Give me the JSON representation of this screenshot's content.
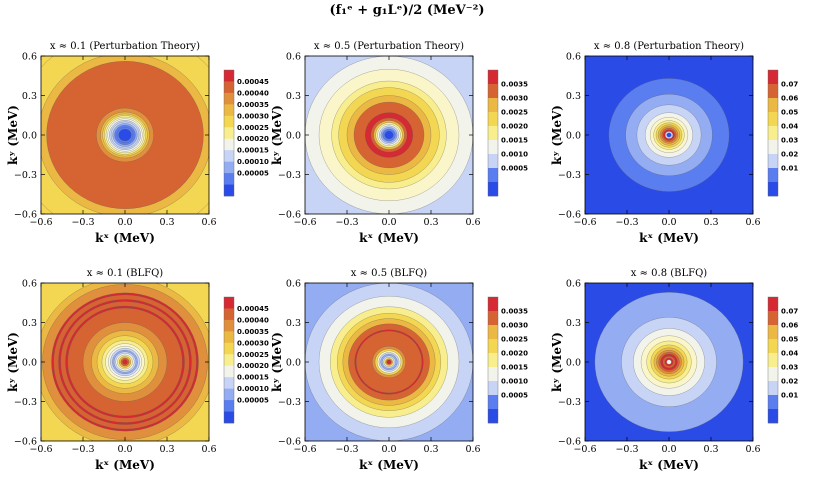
{
  "figure": {
    "title": "(f₁ᵉ + g₁Lᵉ)/2 (MeV⁻²)"
  },
  "colors": {
    "palette": [
      "#2a4be6",
      "#5a7df0",
      "#93acf2",
      "#c7d4f5",
      "#f2f4ec",
      "#fbf6c9",
      "#f8ee8e",
      "#f3d651",
      "#ebb843",
      "#e08f3c",
      "#d66433",
      "#d52a33"
    ]
  },
  "chart_data": [
    {
      "type": "contour",
      "title": "x ≈ 0.1 (Perturbation Theory)",
      "xlabel": "kˣ (MeV)",
      "ylabel": "kʸ (MeV)",
      "xlim": [
        -0.6,
        0.6
      ],
      "ylim": [
        -0.6,
        0.6
      ],
      "xticks": [
        "−0.6",
        "−0.3",
        "0.0",
        "0.3",
        "0.6"
      ],
      "yticks": [
        "0.6",
        "0.3",
        "0.0",
        "−0.3",
        "−0.6"
      ],
      "colorbar": {
        "ticks": [
          "0.00045",
          "0.00040",
          "0.00035",
          "0.00030",
          "0.00025",
          "0.00020",
          "0.00015",
          "0.00010",
          "0.00005"
        ],
        "levels": 11
      },
      "rings": [
        {
          "r": 0.79,
          "level": 7
        },
        {
          "r": 0.62,
          "level": 8
        },
        {
          "r": 0.56,
          "level": 10
        },
        {
          "r": 0.205,
          "level": 9
        },
        {
          "r": 0.175,
          "level": 8
        },
        {
          "r": 0.16,
          "level": 7
        },
        {
          "r": 0.148,
          "level": 6
        },
        {
          "r": 0.136,
          "level": 5
        },
        {
          "r": 0.124,
          "level": 4
        },
        {
          "r": 0.112,
          "level": 3
        },
        {
          "r": 0.1,
          "level": 3
        },
        {
          "r": 0.088,
          "level": 2
        },
        {
          "r": 0.074,
          "level": 1
        },
        {
          "r": 0.058,
          "level": 1
        },
        {
          "r": 0.045,
          "level": 0
        }
      ]
    },
    {
      "type": "contour",
      "title": "x ≈ 0.5 (Perturbation Theory)",
      "xlabel": "kˣ (MeV)",
      "ylabel": "kʸ (MeV)",
      "xlim": [
        -0.6,
        0.6
      ],
      "ylim": [
        -0.6,
        0.6
      ],
      "xticks": [
        "−0.6",
        "−0.3",
        "0.0",
        "0.3",
        "0.6"
      ],
      "yticks": [
        "0.6",
        "0.3",
        "0.0",
        "−0.3",
        "−0.6"
      ],
      "colorbar": {
        "ticks": [
          "0.0035",
          "0.0030",
          "0.0025",
          "0.0020",
          "0.0015",
          "0.0010",
          "0.0005"
        ],
        "levels": 9
      },
      "rings": [
        {
          "r": 0.9,
          "level": 3
        },
        {
          "r": 0.6,
          "level": 4
        },
        {
          "r": 0.5,
          "level": 5
        },
        {
          "r": 0.41,
          "level": 6
        },
        {
          "r": 0.36,
          "level": 7
        },
        {
          "r": 0.3,
          "level": 8
        },
        {
          "r": 0.25,
          "level": 10
        },
        {
          "r": 0.17,
          "level": 11
        },
        {
          "r": 0.13,
          "level": 10
        },
        {
          "r": 0.11,
          "level": 8
        },
        {
          "r": 0.095,
          "level": 6
        },
        {
          "r": 0.082,
          "level": 4
        },
        {
          "r": 0.07,
          "level": 3
        },
        {
          "r": 0.058,
          "level": 2
        },
        {
          "r": 0.046,
          "level": 1
        },
        {
          "r": 0.03,
          "level": 0
        }
      ]
    },
    {
      "type": "contour",
      "title": "x ≈ 0.8 (Perturbation Theory)",
      "xlabel": "kˣ (MeV)",
      "ylabel": "kʸ (MeV)",
      "xlim": [
        -0.6,
        0.6
      ],
      "ylim": [
        -0.6,
        0.6
      ],
      "xticks": [
        "−0.6",
        "−0.3",
        "0.0",
        "0.3",
        "0.6"
      ],
      "yticks": [
        "0.6",
        "0.3",
        "0.0",
        "−0.3",
        "−0.6"
      ],
      "colorbar": {
        "ticks": [
          "0.07",
          "0.06",
          "0.05",
          "0.04",
          "0.03",
          "0.02",
          "0.01"
        ],
        "levels": 9
      },
      "background_level": 0,
      "rings": [
        {
          "r": 0.43,
          "level": 1
        },
        {
          "r": 0.31,
          "level": 2
        },
        {
          "r": 0.23,
          "level": 3
        },
        {
          "r": 0.17,
          "level": 4
        },
        {
          "r": 0.135,
          "level": 5
        },
        {
          "r": 0.11,
          "level": 6
        },
        {
          "r": 0.093,
          "level": 7
        },
        {
          "r": 0.078,
          "level": 8
        },
        {
          "r": 0.064,
          "level": 9
        },
        {
          "r": 0.052,
          "level": 10
        },
        {
          "r": 0.04,
          "level": 11
        },
        {
          "r": 0.028,
          "level": 3
        },
        {
          "r": 0.016,
          "level": 0
        }
      ]
    },
    {
      "type": "contour",
      "title": "x ≈ 0.1 (BLFQ)",
      "xlabel": "kˣ (MeV)",
      "ylabel": "kʸ (MeV)",
      "xlim": [
        -0.6,
        0.6
      ],
      "ylim": [
        -0.6,
        0.6
      ],
      "xticks": [
        "−0.6",
        "−0.3",
        "0.0",
        "0.3",
        "0.6"
      ],
      "yticks": [
        "0.6",
        "0.3",
        "0.0",
        "−0.3",
        "−0.6"
      ],
      "colorbar": {
        "ticks": [
          "0.00045",
          "0.00040",
          "0.00035",
          "0.00030",
          "0.00025",
          "0.00020",
          "0.00015",
          "0.00010",
          "0.00005"
        ],
        "levels": 11
      },
      "rings": [
        {
          "r": 0.85,
          "level": 7
        },
        {
          "r": 0.64,
          "level": 8
        },
        {
          "r": 0.59,
          "level": 9
        },
        {
          "r": 0.525,
          "level": 11
        },
        {
          "r": 0.51,
          "level": 10
        },
        {
          "r": 0.475,
          "level": 11
        },
        {
          "r": 0.46,
          "level": 10
        },
        {
          "r": 0.425,
          "level": 11
        },
        {
          "r": 0.41,
          "level": 10
        },
        {
          "r": 0.3,
          "level": 9
        },
        {
          "r": 0.24,
          "level": 8
        },
        {
          "r": 0.2,
          "level": 7
        },
        {
          "r": 0.165,
          "level": 6
        },
        {
          "r": 0.14,
          "level": 5
        },
        {
          "r": 0.12,
          "level": 4
        },
        {
          "r": 0.105,
          "level": 3
        },
        {
          "r": 0.09,
          "level": 2
        },
        {
          "r": 0.078,
          "level": 3
        },
        {
          "r": 0.066,
          "level": 4
        },
        {
          "r": 0.054,
          "level": 6
        },
        {
          "r": 0.042,
          "level": 8
        },
        {
          "r": 0.03,
          "level": 10
        },
        {
          "r": 0.018,
          "level": 11
        }
      ]
    },
    {
      "type": "contour",
      "title": "x ≈ 0.5 (BLFQ)",
      "xlabel": "kˣ (MeV)",
      "ylabel": "kʸ (MeV)",
      "xlim": [
        -0.6,
        0.6
      ],
      "ylim": [
        -0.6,
        0.6
      ],
      "xticks": [
        "−0.6",
        "−0.3",
        "0.0",
        "0.3",
        "0.6"
      ],
      "yticks": [
        "0.6",
        "0.3",
        "0.0",
        "−0.3",
        "−0.6"
      ],
      "colorbar": {
        "ticks": [
          "0.0035",
          "0.0030",
          "0.0025",
          "0.0020",
          "0.0015",
          "0.0010",
          "0.0005"
        ],
        "levels": 9
      },
      "rings": [
        {
          "r": 0.9,
          "level": 2
        },
        {
          "r": 0.6,
          "level": 3
        },
        {
          "r": 0.5,
          "level": 4
        },
        {
          "r": 0.42,
          "level": 6
        },
        {
          "r": 0.37,
          "level": 7
        },
        {
          "r": 0.33,
          "level": 8
        },
        {
          "r": 0.29,
          "level": 10
        },
        {
          "r": 0.245,
          "level": 11
        },
        {
          "r": 0.235,
          "level": 10
        },
        {
          "r": 0.12,
          "level": 9
        },
        {
          "r": 0.1,
          "level": 7
        },
        {
          "r": 0.085,
          "level": 5
        },
        {
          "r": 0.072,
          "level": 3
        },
        {
          "r": 0.06,
          "level": 2
        },
        {
          "r": 0.048,
          "level": 3
        },
        {
          "r": 0.037,
          "level": 6
        },
        {
          "r": 0.026,
          "level": 9
        },
        {
          "r": 0.016,
          "level": 11
        }
      ]
    },
    {
      "type": "contour",
      "title": "x ≈ 0.8 (BLFQ)",
      "xlabel": "kˣ (MeV)",
      "ylabel": "kʸ (MeV)",
      "xlim": [
        -0.6,
        0.6
      ],
      "ylim": [
        -0.6,
        0.6
      ],
      "xticks": [
        "−0.6",
        "−0.3",
        "0.0",
        "0.3",
        "0.6"
      ],
      "yticks": [
        "0.6",
        "0.3",
        "0.0",
        "−0.3",
        "−0.6"
      ],
      "colorbar": {
        "ticks": [
          "0.07",
          "0.06",
          "0.05",
          "0.04",
          "0.03",
          "0.02",
          "0.01"
        ],
        "levels": 9
      },
      "background_level": 0,
      "rings": [
        {
          "r": 0.53,
          "level": 2
        },
        {
          "r": 0.34,
          "level": 3
        },
        {
          "r": 0.255,
          "level": 4
        },
        {
          "r": 0.2,
          "level": 5
        },
        {
          "r": 0.16,
          "level": 6
        },
        {
          "r": 0.13,
          "level": 7
        },
        {
          "r": 0.108,
          "level": 8
        },
        {
          "r": 0.09,
          "level": 9
        },
        {
          "r": 0.074,
          "level": 10
        },
        {
          "r": 0.06,
          "level": 11
        },
        {
          "r": 0.045,
          "level": 10
        },
        {
          "r": 0.03,
          "level": 11
        },
        {
          "r": 0.017,
          "level": 4
        }
      ]
    }
  ]
}
